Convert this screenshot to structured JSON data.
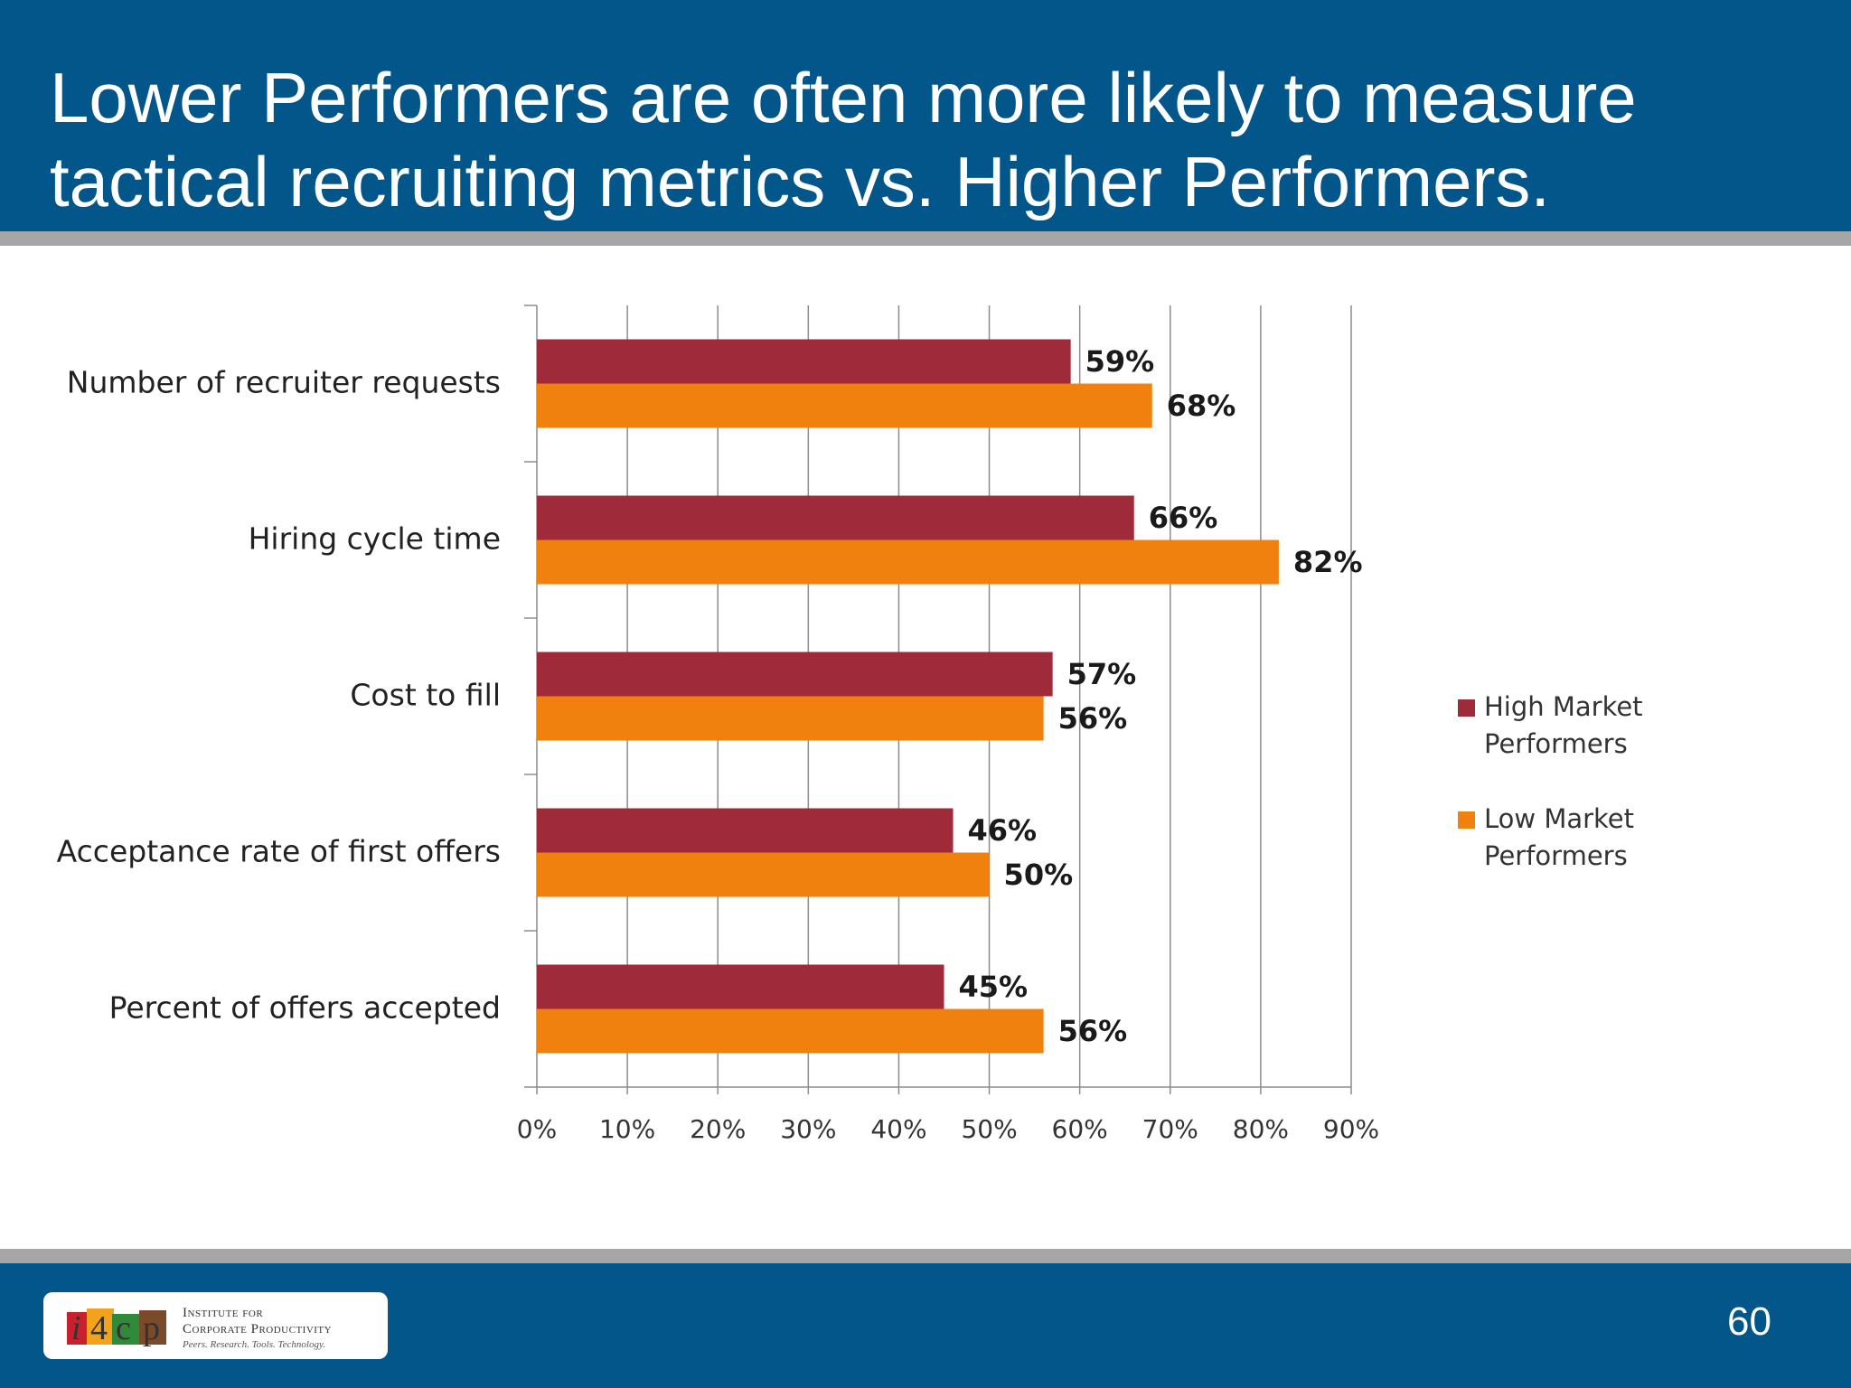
{
  "slide": {
    "title_line1": "Lower Performers are often more likely to measure",
    "title_line2": "tactical recruiting metrics vs. Higher Performers.",
    "page_number": "60"
  },
  "logo": {
    "mark": "i4cp",
    "line1": "Institute for",
    "line2": "Corporate Productivity",
    "tagline": "Peers. Research. Tools. Technology."
  },
  "colors": {
    "header": "#03568a",
    "high": "#9e2a3a",
    "low": "#f0810f",
    "grid": "#8c8c8c"
  },
  "chart_data": {
    "type": "bar",
    "orientation": "horizontal",
    "categories": [
      "Number of recruiter requests",
      "Hiring cycle time",
      "Cost to fill",
      "Acceptance rate of first offers",
      "Percent of offers accepted"
    ],
    "series": [
      {
        "name": "High Market Performers",
        "values": [
          59,
          66,
          57,
          46,
          45
        ],
        "labels": [
          "59%",
          "66%",
          "57%",
          "46%",
          "45%"
        ]
      },
      {
        "name": "Low Market Performers",
        "values": [
          68,
          82,
          56,
          50,
          56
        ],
        "labels": [
          "68%",
          "82%",
          "56%",
          "50%",
          "56%"
        ]
      }
    ],
    "xlim": [
      0,
      90
    ],
    "xticks": [
      "0%",
      "10%",
      "20%",
      "30%",
      "40%",
      "50%",
      "60%",
      "70%",
      "80%",
      "90%"
    ],
    "grid": true,
    "legend_position": "right",
    "legend": [
      {
        "line1": "High Market",
        "line2": "Performers"
      },
      {
        "line1": "Low Market",
        "line2": "Performers"
      }
    ]
  }
}
